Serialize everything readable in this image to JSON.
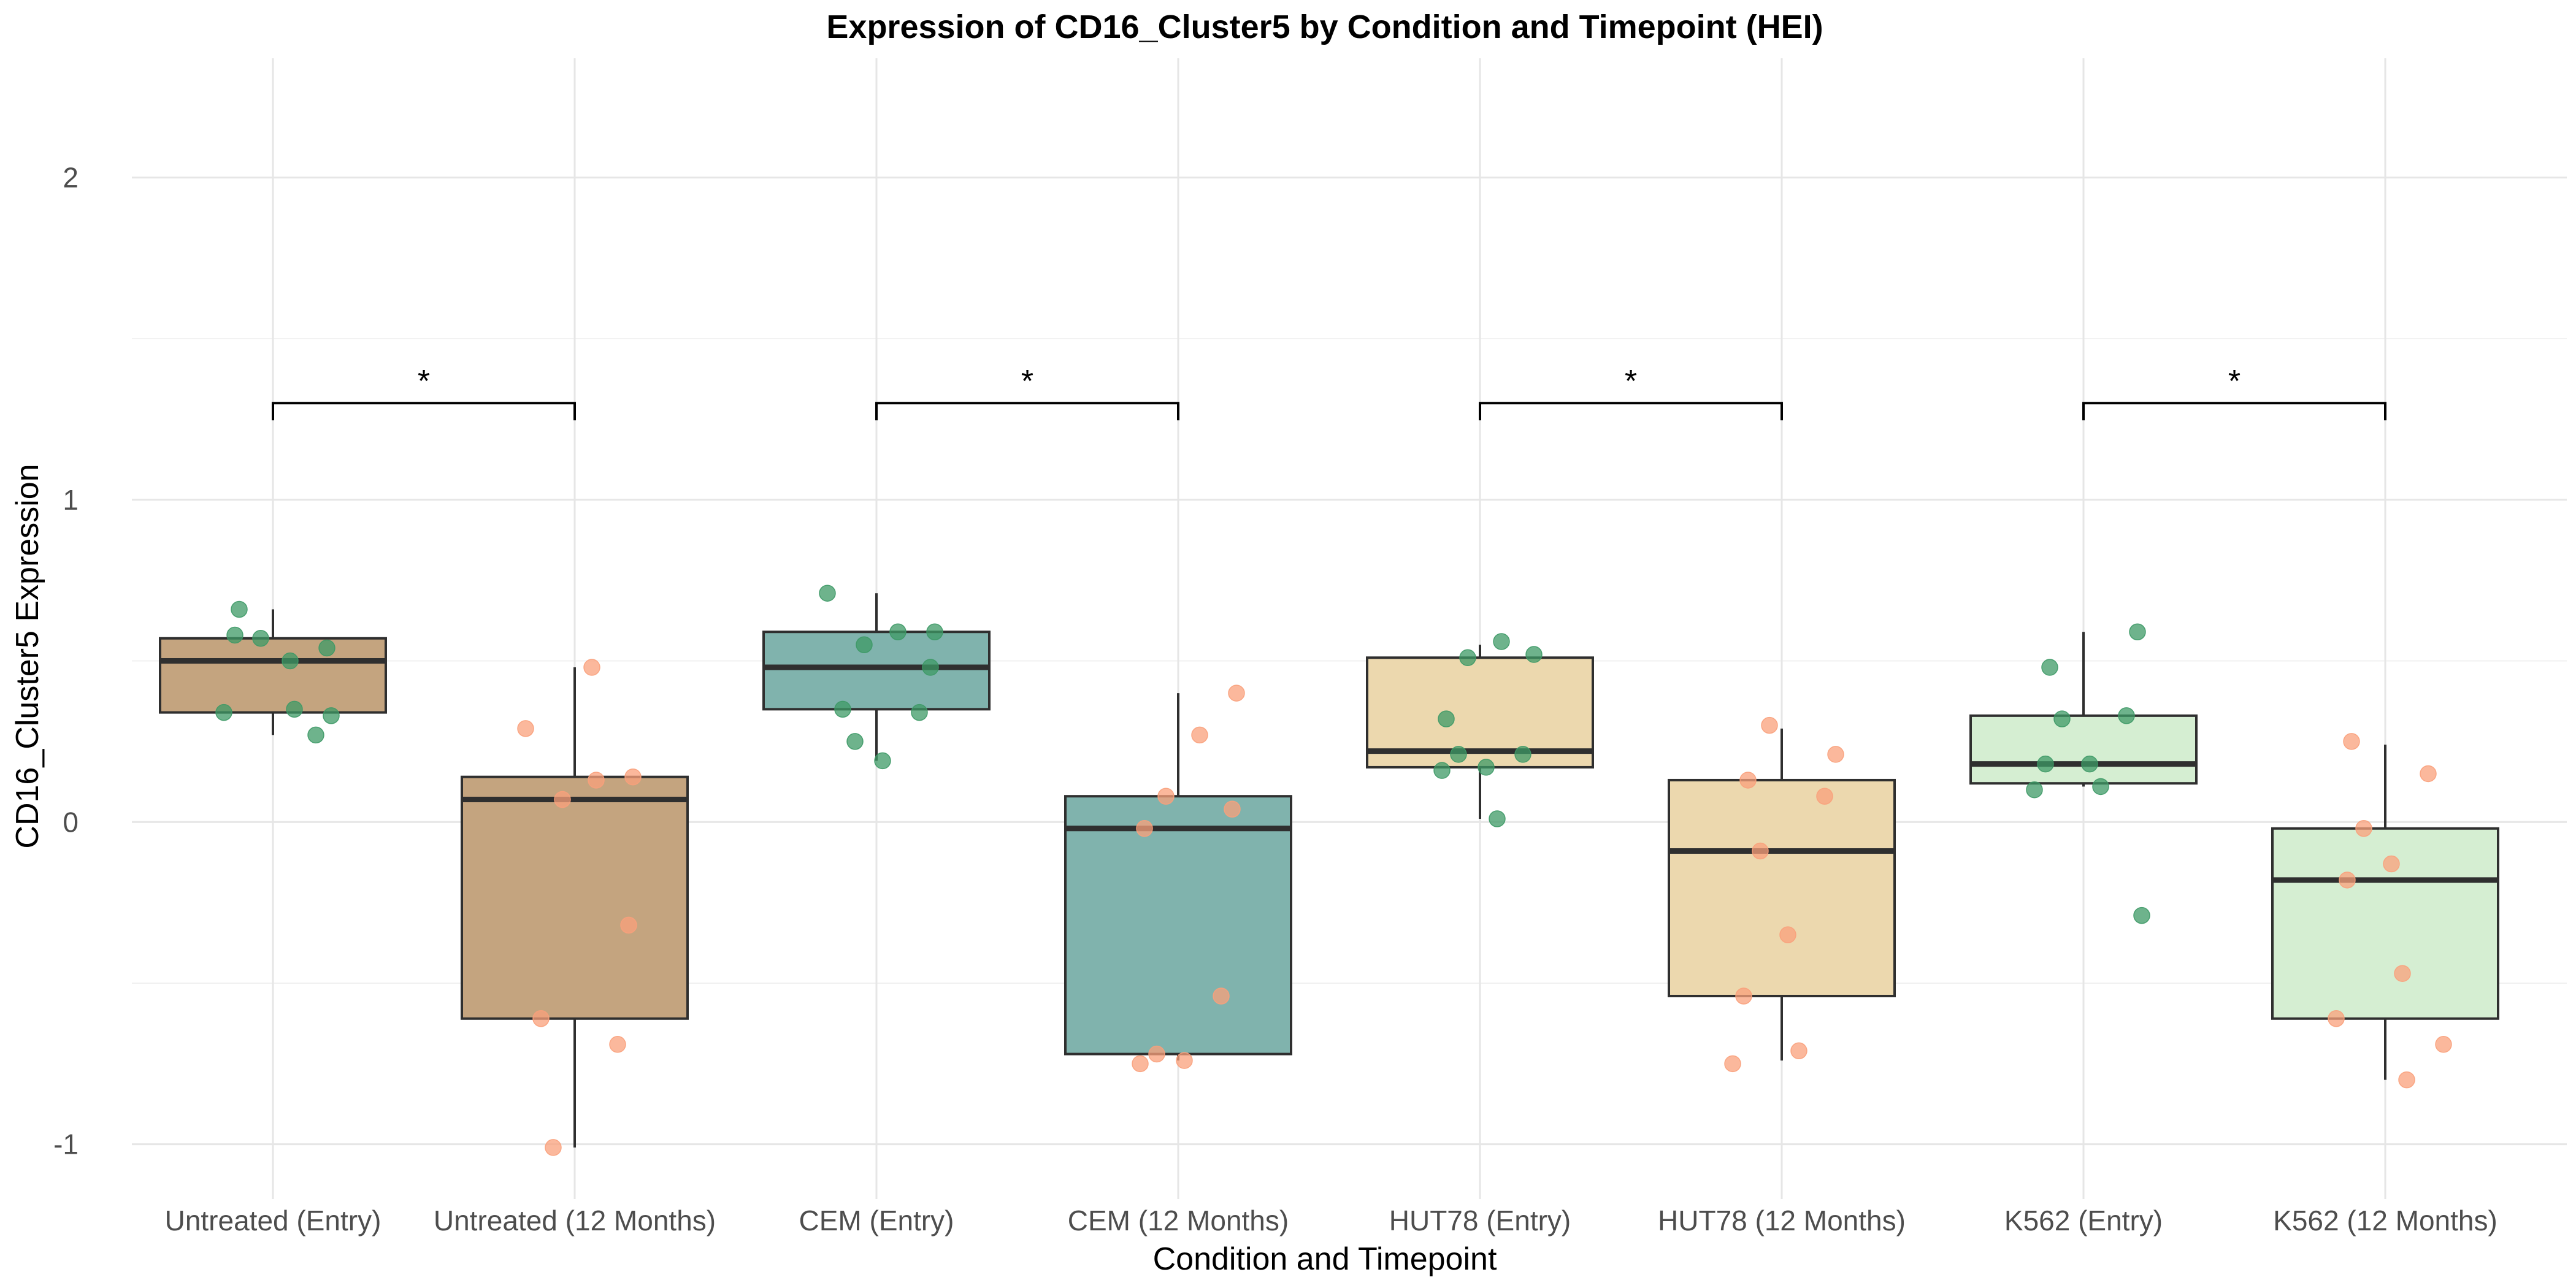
{
  "chart_data": {
    "type": "box",
    "title": "Expression of CD16_Cluster5 by Condition and Timepoint (HEI)",
    "xlabel": "Condition and Timepoint",
    "ylabel": "CD16_Cluster5 Expression",
    "ylim": [
      -1.17,
      2.37
    ],
    "yticks": [
      -1,
      0,
      1,
      2
    ],
    "grid": true,
    "legend": "none",
    "categories": [
      "Untreated (Entry)",
      "Untreated (12 Months)",
      "CEM (Entry)",
      "CEM (12 Months)",
      "HUT78 (Entry)",
      "HUT78 (12 Months)",
      "K562 (Entry)",
      "K562 (12 Months)"
    ],
    "colors": {
      "Untreated": "#c4a47f",
      "CEM": "#80b3ad",
      "HUT78": "#ecd8ae",
      "K562": "#d5eed2",
      "entry_points": "#3d9966",
      "month12_points": "#f9a07b",
      "box_stroke": "#2f2f2f"
    },
    "boxes": [
      {
        "category": "Untreated (Entry)",
        "group": "Untreated",
        "min": 0.27,
        "q1": 0.34,
        "median": 0.5,
        "q3": 0.57,
        "max": 0.66,
        "points": [
          0.58,
          0.5,
          0.34,
          0.33,
          0.35,
          0.57,
          0.54,
          0.66,
          0.27
        ]
      },
      {
        "category": "Untreated (12 Months)",
        "group": "Untreated",
        "min": -1.01,
        "q1": -0.61,
        "median": 0.07,
        "q3": 0.14,
        "max": 0.48,
        "points": [
          0.48,
          0.29,
          0.14,
          0.13,
          0.07,
          -0.32,
          -0.61,
          -0.69,
          -1.01
        ]
      },
      {
        "category": "CEM (Entry)",
        "group": "CEM",
        "min": 0.19,
        "q1": 0.35,
        "median": 0.48,
        "q3": 0.59,
        "max": 0.71,
        "points": [
          0.71,
          0.59,
          0.59,
          0.55,
          0.48,
          0.35,
          0.34,
          0.25,
          0.19
        ]
      },
      {
        "category": "CEM (12 Months)",
        "group": "CEM",
        "min": -0.74,
        "q1": -0.72,
        "median": -0.02,
        "q3": 0.08,
        "max": 0.4,
        "points": [
          0.4,
          0.27,
          0.08,
          0.04,
          -0.02,
          -0.54,
          -0.72,
          -0.74,
          -0.75
        ]
      },
      {
        "category": "HUT78 (Entry)",
        "group": "HUT78",
        "min": 0.01,
        "q1": 0.17,
        "median": 0.22,
        "q3": 0.51,
        "max": 0.55,
        "points": [
          0.56,
          0.51,
          0.52,
          0.32,
          0.21,
          0.21,
          0.17,
          0.16,
          0.01
        ]
      },
      {
        "category": "HUT78 (12 Months)",
        "group": "HUT78",
        "min": -0.74,
        "q1": -0.54,
        "median": -0.09,
        "q3": 0.13,
        "max": 0.29,
        "points": [
          0.3,
          0.21,
          0.13,
          0.08,
          -0.09,
          -0.35,
          -0.54,
          -0.71,
          -0.75
        ]
      },
      {
        "category": "K562 (Entry)",
        "group": "K562",
        "min": 0.11,
        "q1": 0.12,
        "median": 0.18,
        "q3": 0.33,
        "max": 0.59,
        "points": [
          0.59,
          0.48,
          0.33,
          0.32,
          0.18,
          0.18,
          0.11,
          0.1,
          -0.29
        ]
      },
      {
        "category": "K562 (12 Months)",
        "group": "K562",
        "min": -0.8,
        "q1": -0.61,
        "median": -0.18,
        "q3": -0.02,
        "max": 0.24,
        "points": [
          0.25,
          0.15,
          -0.02,
          -0.13,
          -0.18,
          -0.47,
          -0.61,
          -0.69,
          -0.8
        ]
      }
    ],
    "comparisons": [
      {
        "from": "Untreated (Entry)",
        "to": "Untreated (12 Months)",
        "label": "*",
        "y": 1.3
      },
      {
        "from": "CEM (Entry)",
        "to": "CEM (12 Months)",
        "label": "*",
        "y": 1.3
      },
      {
        "from": "HUT78 (Entry)",
        "to": "HUT78 (12 Months)",
        "label": "*",
        "y": 1.3
      },
      {
        "from": "K562 (Entry)",
        "to": "K562 (12 Months)",
        "label": "*",
        "y": 1.3
      }
    ]
  }
}
